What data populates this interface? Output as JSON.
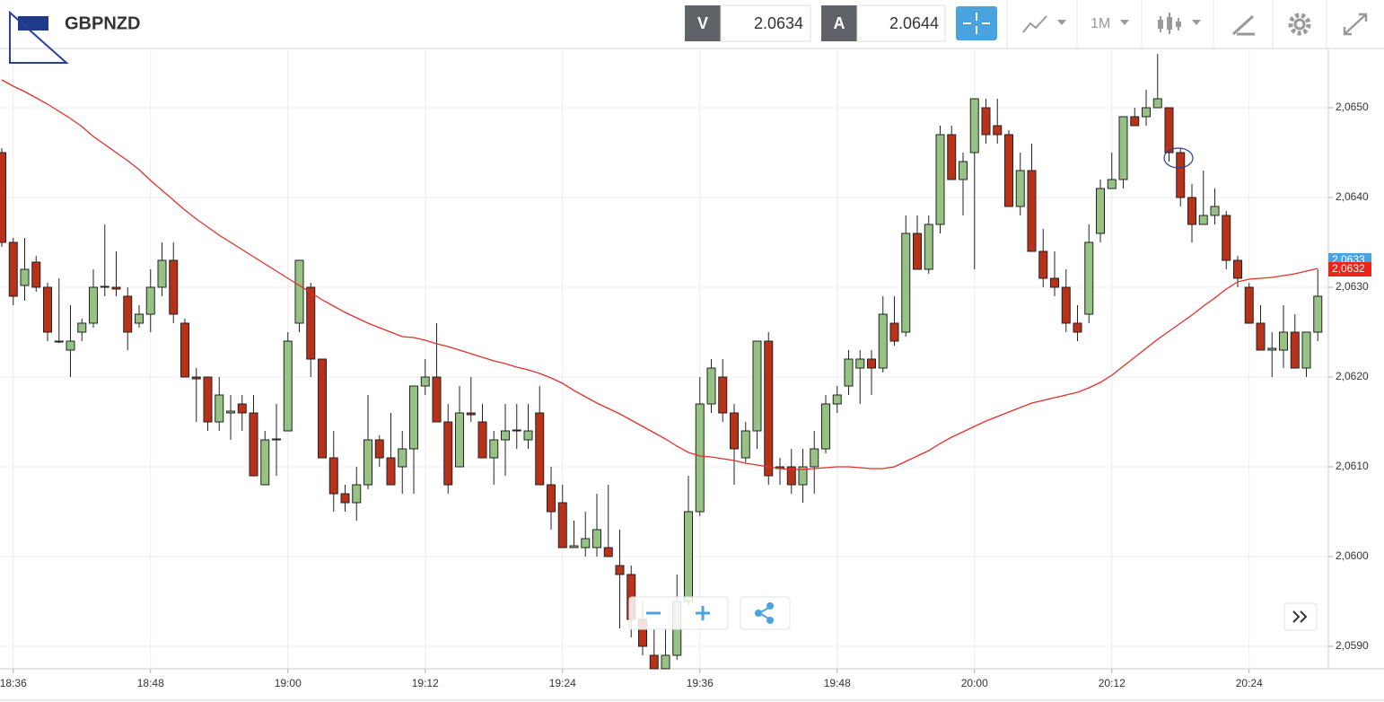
{
  "toolbar": {
    "bid_label": "V",
    "bid": 2.0634,
    "ask_label": "A",
    "ask": 2.0644,
    "interval": "1M"
  },
  "chart_data": {
    "type": "candlestick",
    "title": "GBPNZD",
    "x": [
      "18:35",
      "18:36",
      "18:37",
      "18:38",
      "18:39",
      "18:40",
      "18:41",
      "18:42",
      "18:43",
      "18:44",
      "18:45",
      "18:46",
      "18:47",
      "18:48",
      "18:49",
      "18:50",
      "18:51",
      "18:52",
      "18:53",
      "18:54",
      "18:55",
      "18:56",
      "18:57",
      "18:58",
      "18:59",
      "19:00",
      "19:01",
      "19:02",
      "19:03",
      "19:04",
      "19:05",
      "19:06",
      "19:07",
      "19:08",
      "19:09",
      "19:10",
      "19:11",
      "19:12",
      "19:13",
      "19:14",
      "19:15",
      "19:16",
      "19:17",
      "19:18",
      "19:19",
      "19:20",
      "19:21",
      "19:22",
      "19:23",
      "19:24",
      "19:25",
      "19:26",
      "19:27",
      "19:28",
      "19:29",
      "19:30",
      "19:31",
      "19:32",
      "19:33",
      "19:34",
      "19:35",
      "19:36",
      "19:37",
      "19:38",
      "19:39",
      "19:40",
      "19:41",
      "19:42",
      "19:43",
      "19:44",
      "19:45",
      "19:46",
      "19:47",
      "19:48",
      "19:49",
      "19:50",
      "19:51",
      "19:52",
      "19:53",
      "19:54",
      "19:55",
      "19:56",
      "19:57",
      "19:58",
      "19:59",
      "20:00",
      "20:01",
      "20:02",
      "20:03",
      "20:04",
      "20:05",
      "20:06",
      "20:07",
      "20:08",
      "20:09",
      "20:10",
      "20:11",
      "20:12",
      "20:13",
      "20:14",
      "20:15",
      "20:16",
      "20:17",
      "20:18",
      "20:19",
      "20:20",
      "20:21",
      "20:22",
      "20:23",
      "20:24",
      "20:25",
      "20:26",
      "20:27",
      "20:28",
      "20:29",
      "20:30"
    ],
    "ohlc": {
      "open": [
        2.0645,
        2.0635,
        2.06302,
        2.06328,
        2.063,
        2.0624,
        2.0623,
        2.0625,
        2.0626,
        2.063,
        2.063,
        2.0629,
        2.0626,
        2.0627,
        2.063,
        2.0633,
        2.0626,
        2.062,
        2.062,
        2.0615,
        2.0616,
        2.0617,
        2.0616,
        2.0608,
        2.0613,
        2.0614,
        2.0626,
        2.063,
        2.0622,
        2.0611,
        2.0607,
        2.0606,
        2.0608,
        2.0613,
        2.0611,
        2.061,
        2.0612,
        2.0619,
        2.062,
        2.0615,
        2.061,
        2.0616,
        2.0615,
        2.0611,
        2.0613,
        2.0614,
        2.0613,
        2.0616,
        2.0608,
        2.0606,
        2.0601,
        2.0601,
        2.0601,
        2.0601,
        2.0599,
        2.0598,
        2.0593,
        2.0589,
        2.05875,
        2.0589,
        2.0595,
        2.0605,
        2.0617,
        2.062,
        2.0616,
        2.0611,
        2.0614,
        2.0624,
        2.061,
        2.061,
        2.0608,
        2.061,
        2.0612,
        2.0617,
        2.0619,
        2.0621,
        2.0622,
        2.0621,
        2.0626,
        2.0625,
        2.0636,
        2.0632,
        2.0637,
        2.0647,
        2.0642,
        2.0645,
        2.065,
        2.0648,
        2.0647,
        2.0639,
        2.0643,
        2.0634,
        2.0631,
        2.063,
        2.0626,
        2.0627,
        2.0636,
        2.0641,
        2.0642,
        2.0649,
        2.0649,
        2.065,
        2.065,
        2.0645,
        2.064,
        2.0637,
        2.0638,
        2.0638,
        2.0633,
        2.063,
        2.0626,
        2.0623,
        2.0623,
        2.0625,
        2.0621,
        2.0625
      ],
      "high": [
        2.06455,
        2.06355,
        2.06355,
        2.06335,
        2.06305,
        2.0631,
        2.0628,
        2.06265,
        2.0632,
        2.0637,
        2.0634,
        2.063,
        2.0628,
        2.0632,
        2.0635,
        2.0635,
        2.06265,
        2.0621,
        2.062,
        2.062,
        2.0618,
        2.0618,
        2.0618,
        2.0614,
        2.0617,
        2.0625,
        2.0633,
        2.06305,
        2.0622,
        2.0614,
        2.0608,
        2.061,
        2.0618,
        2.06135,
        2.0616,
        2.0614,
        2.0619,
        2.0622,
        2.0626,
        2.0617,
        2.0619,
        2.062,
        2.0617,
        2.0614,
        2.0617,
        2.0617,
        2.0617,
        2.0619,
        2.061,
        2.0608,
        2.0604,
        2.0605,
        2.0607,
        2.0608,
        2.0603,
        2.0599,
        2.0595,
        2.0592,
        2.0592,
        2.0598,
        2.0609,
        2.062,
        2.0622,
        2.0622,
        2.0617,
        2.0615,
        2.0624,
        2.0625,
        2.0611,
        2.0612,
        2.0612,
        2.0614,
        2.0618,
        2.0619,
        2.0623,
        2.0623,
        2.0623,
        2.0629,
        2.0629,
        2.0638,
        2.0638,
        2.0638,
        2.0648,
        2.0648,
        2.0645,
        2.0651,
        2.0651,
        2.0651,
        2.06475,
        2.0645,
        2.0646,
        2.06365,
        2.0634,
        2.0632,
        2.0628,
        2.0637,
        2.0642,
        2.0645,
        2.0649,
        2.065,
        2.0652,
        2.0656,
        2.065,
        2.06455,
        2.06415,
        2.0643,
        2.0641,
        2.06385,
        2.06335,
        2.06305,
        2.0628,
        2.0625,
        2.0628,
        2.0627,
        2.0625,
        2.0632
      ],
      "low": [
        2.06345,
        2.0628,
        2.06285,
        2.06295,
        2.0624,
        2.06238,
        2.062,
        2.0624,
        2.06255,
        2.0629,
        2.0629,
        2.0623,
        2.06255,
        2.0625,
        2.0629,
        2.0626,
        2.062,
        2.0615,
        2.0614,
        2.0614,
        2.0613,
        2.0614,
        2.0609,
        2.0608,
        2.0609,
        2.0614,
        2.0625,
        2.062,
        2.0611,
        2.0605,
        2.0605,
        2.0604,
        2.06075,
        2.061,
        2.0608,
        2.0607,
        2.0607,
        2.0618,
        2.0615,
        2.0607,
        2.061,
        2.0615,
        2.0611,
        2.0608,
        2.0609,
        2.0612,
        2.0612,
        2.0608,
        2.0603,
        2.0601,
        2.0601,
        2.06,
        2.06,
        2.06,
        2.0592,
        2.0591,
        2.0589,
        2.05875,
        2.05875,
        2.05885,
        2.05945,
        2.06045,
        2.0616,
        2.0615,
        2.0608,
        2.06105,
        2.0612,
        2.0608,
        2.0608,
        2.0607,
        2.0606,
        2.0607,
        2.06115,
        2.0616,
        2.0618,
        2.0617,
        2.0618,
        2.06205,
        2.06235,
        2.06245,
        2.0632,
        2.06315,
        2.0636,
        2.0642,
        2.0638,
        2.0632,
        2.0646,
        2.0646,
        2.0639,
        2.0638,
        2.0634,
        2.063,
        2.0629,
        2.0625,
        2.0624,
        2.0626,
        2.0635,
        2.0641,
        2.0641,
        2.0648,
        2.0648,
        2.065,
        2.0644,
        2.0639,
        2.0635,
        2.0637,
        2.0637,
        2.0632,
        2.063,
        2.0626,
        2.0623,
        2.062,
        2.0621,
        2.0621,
        2.062,
        2.0624
      ],
      "close": [
        2.0635,
        2.0629,
        2.0632,
        2.063,
        2.0625,
        2.06239,
        2.0624,
        2.0626,
        2.063,
        2.06301,
        2.06298,
        2.0625,
        2.0627,
        2.063,
        2.0633,
        2.0627,
        2.062,
        2.06198,
        2.0615,
        2.0618,
        2.06162,
        2.0616,
        2.0609,
        2.0613,
        2.06131,
        2.0624,
        2.0633,
        2.0622,
        2.0611,
        2.0607,
        2.0606,
        2.0608,
        2.0613,
        2.0611,
        2.0608,
        2.0612,
        2.0619,
        2.062,
        2.0615,
        2.0608,
        2.0616,
        2.06158,
        2.0611,
        2.0613,
        2.0614,
        2.06141,
        2.0614,
        2.0608,
        2.0605,
        2.0601,
        2.06012,
        2.0602,
        2.0603,
        2.06,
        2.0598,
        2.0593,
        2.059,
        2.05875,
        2.0589,
        2.0595,
        2.0605,
        2.0617,
        2.0621,
        2.0616,
        2.0612,
        2.0614,
        2.0624,
        2.0609,
        2.06098,
        2.0608,
        2.061,
        2.0612,
        2.0617,
        2.0618,
        2.0622,
        2.0622,
        2.0621,
        2.0627,
        2.0624,
        2.0636,
        2.0632,
        2.0637,
        2.0647,
        2.0642,
        2.0644,
        2.0651,
        2.0647,
        2.0647,
        2.0639,
        2.0643,
        2.0634,
        2.0631,
        2.063,
        2.0626,
        2.0625,
        2.0635,
        2.0641,
        2.0642,
        2.0649,
        2.0648,
        2.065,
        2.0651,
        2.0645,
        2.064,
        2.0637,
        2.0638,
        2.0639,
        2.0633,
        2.0631,
        2.0626,
        2.0623,
        2.06232,
        2.0625,
        2.0621,
        2.0625,
        2.0629
      ],
      "up_color": "#96c283",
      "down_color": "#b8321a"
    },
    "overlay": {
      "color": "#e0302a",
      "values": [
        2.06531,
        2.06524,
        2.06518,
        2.06511,
        2.06504,
        2.06496,
        2.06488,
        2.06479,
        2.06468,
        2.06459,
        2.0645,
        2.06441,
        2.06431,
        2.06419,
        2.06408,
        2.06397,
        2.06386,
        2.06376,
        2.06367,
        2.06358,
        2.0635,
        2.06342,
        2.06334,
        2.06326,
        2.06318,
        2.0631,
        2.06302,
        2.06294,
        2.06286,
        2.06279,
        2.06272,
        2.06266,
        2.0626,
        2.06255,
        2.0625,
        2.06245,
        2.06244,
        2.06241,
        2.06237,
        2.06234,
        2.0623,
        2.06226,
        2.06222,
        2.06218,
        2.06215,
        2.06211,
        2.06208,
        2.06204,
        2.06199,
        2.06193,
        2.06185,
        2.06178,
        2.06171,
        2.06165,
        2.06159,
        2.06152,
        2.06145,
        2.06138,
        2.06131,
        2.06123,
        2.06116,
        2.06112,
        2.06111,
        2.06109,
        2.06107,
        2.06104,
        2.06102,
        2.061,
        2.06098,
        2.06097,
        2.06097,
        2.06098,
        2.06099,
        2.061,
        2.061,
        2.06099,
        2.06098,
        2.06098,
        2.061,
        2.06106,
        2.06112,
        2.06118,
        2.06126,
        2.06133,
        2.06139,
        2.06145,
        2.06151,
        2.06156,
        2.06161,
        2.06166,
        2.06171,
        2.06174,
        2.06177,
        2.0618,
        2.06183,
        2.06188,
        2.06194,
        2.06202,
        2.06212,
        2.06222,
        2.06232,
        2.06242,
        2.06251,
        2.0626,
        2.06269,
        2.06279,
        2.06288,
        2.06298,
        2.06306,
        2.06309,
        2.0631,
        2.06311,
        2.06313,
        2.06315,
        2.06318,
        2.06321
      ]
    },
    "ylim": [
      2.05875,
      2.06565
    ],
    "yticks": [
      {
        "value": 2.059,
        "label": "2,0590"
      },
      {
        "value": 2.06,
        "label": "2,0600"
      },
      {
        "value": 2.061,
        "label": "2,0610"
      },
      {
        "value": 2.062,
        "label": "2,0620"
      },
      {
        "value": 2.063,
        "label": "2,0630"
      },
      {
        "value": 2.064,
        "label": "2,0640"
      },
      {
        "value": 2.065,
        "label": "2,0650"
      }
    ],
    "xticks": [
      "18:36",
      "18:48",
      "19:00",
      "19:12",
      "19:24",
      "19:36",
      "19:48",
      "20:00",
      "20:12",
      "20:24"
    ],
    "price_markers": [
      {
        "value": 2.0633,
        "label": "2,0633",
        "color": "#4aa3df"
      },
      {
        "value": 2.0632,
        "label": "2,0632",
        "color": "#e8261c"
      }
    ],
    "grid": true
  }
}
